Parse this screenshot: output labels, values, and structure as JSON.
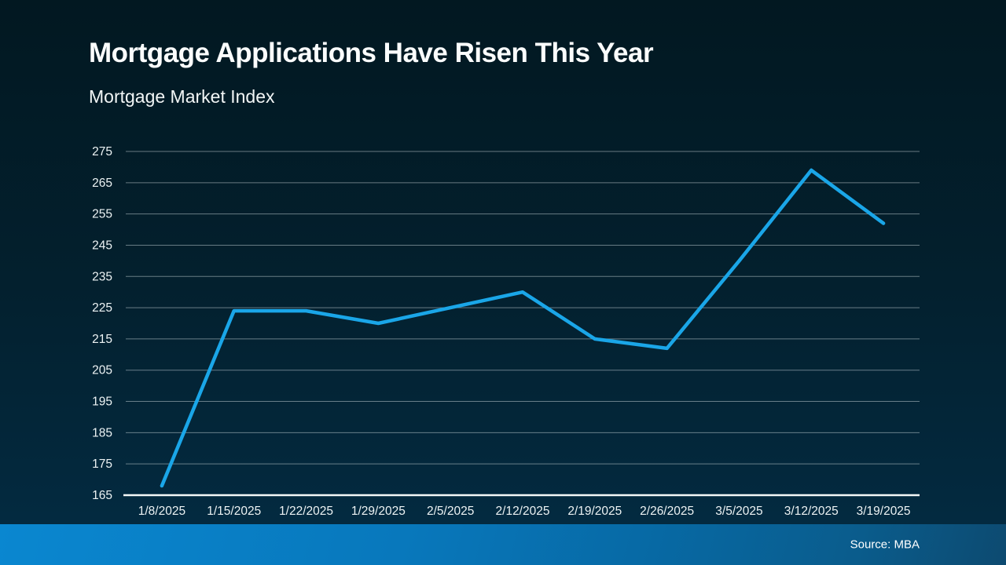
{
  "slide": {
    "title": "Mortgage Applications Have Risen This Year",
    "subtitle": "Mortgage Market Index",
    "source_label": "Source: MBA"
  },
  "colors": {
    "background_top": "#021821",
    "background_bottom": "#032a40",
    "line": "#1aa6e8",
    "gridline": "rgba(205,216,220,0.5)",
    "axis_baseline": "#f4f8f8",
    "tick_label": "#edf3f4",
    "footer_left": "#0a87d0",
    "footer_right": "#0d4a70",
    "text": "#fbfdfd"
  },
  "chart_data": {
    "type": "line",
    "title": "Mortgage Applications Have Risen This Year",
    "subtitle": "Mortgage Market Index",
    "x": [
      "1/8/2025",
      "1/15/2025",
      "1/22/2025",
      "1/29/2025",
      "2/5/2025",
      "2/12/2025",
      "2/19/2025",
      "2/26/2025",
      "3/5/2025",
      "3/12/2025",
      "3/19/2025"
    ],
    "series": [
      {
        "name": "Mortgage Market Index",
        "values": [
          168,
          224,
          224,
          220,
          225,
          230,
          215,
          212,
          240,
          269,
          252
        ]
      }
    ],
    "ylim": [
      165,
      275
    ],
    "ytick_step": 10,
    "yticks": [
      275,
      265,
      255,
      245,
      235,
      225,
      215,
      205,
      195,
      185,
      175,
      165
    ],
    "grid": "horizontal-only",
    "legend": "none",
    "line_color": "#1aa6e8",
    "source": "Source: MBA"
  }
}
